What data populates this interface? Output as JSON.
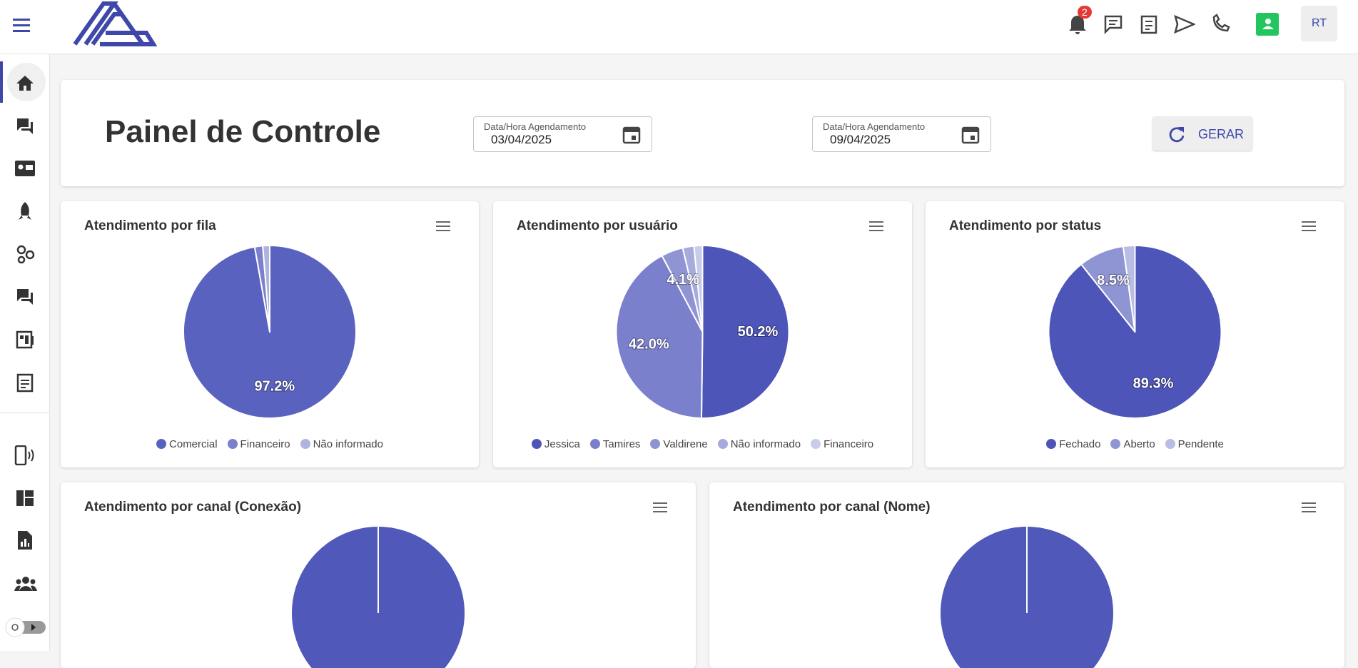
{
  "header": {
    "notification_count": "2",
    "avatar": "RT"
  },
  "panel": {
    "title": "Painel de Controle",
    "date_from": {
      "label": "Data/Hora Agendamento",
      "value": "03/04/2025"
    },
    "date_to": {
      "label": "Data/Hora Agendamento",
      "value": "09/04/2025"
    },
    "button": "GERAR"
  },
  "chart_data": [
    {
      "type": "pie",
      "title": "Atendimento por fila",
      "categories": [
        "Comercial",
        "Financeiro",
        "Não informado"
      ],
      "values": [
        97.2,
        1.5,
        1.3
      ],
      "value_labels": [
        "97.2%",
        null,
        null
      ],
      "colors": [
        "#5a62bf",
        "#7a80cc",
        "#b0b3e0"
      ]
    },
    {
      "type": "pie",
      "title": "Atendimento por usuário",
      "categories": [
        "Jessica",
        "Tamires",
        "Valdirene",
        "Não informado",
        "Financeiro"
      ],
      "values": [
        50.2,
        42.0,
        4.1,
        2.1,
        1.6
      ],
      "value_labels": [
        "50.2%",
        "42.0%",
        "4.1%",
        null,
        null
      ],
      "colors": [
        "#4d55b8",
        "#7a80cc",
        "#8f94d3",
        "#a6aadc",
        "#c8cbea"
      ]
    },
    {
      "type": "pie",
      "title": "Atendimento por status",
      "categories": [
        "Fechado",
        "Aberto",
        "Pendente"
      ],
      "values": [
        89.3,
        8.5,
        2.2
      ],
      "value_labels": [
        "89.3%",
        "8.5%",
        null
      ],
      "colors": [
        "#4d55b8",
        "#8f94d3",
        "#b9bce4"
      ]
    },
    {
      "type": "pie",
      "title": "Atendimento por canal (Conexão)",
      "categories": [
        null
      ],
      "values": [
        100
      ],
      "value_labels": [
        null
      ],
      "colors": [
        "#5058ba"
      ]
    },
    {
      "type": "pie",
      "title": "Atendimento por canal (Nome)",
      "categories": [
        null
      ],
      "values": [
        100
      ],
      "value_labels": [
        null
      ],
      "colors": [
        "#5058ba"
      ]
    }
  ]
}
